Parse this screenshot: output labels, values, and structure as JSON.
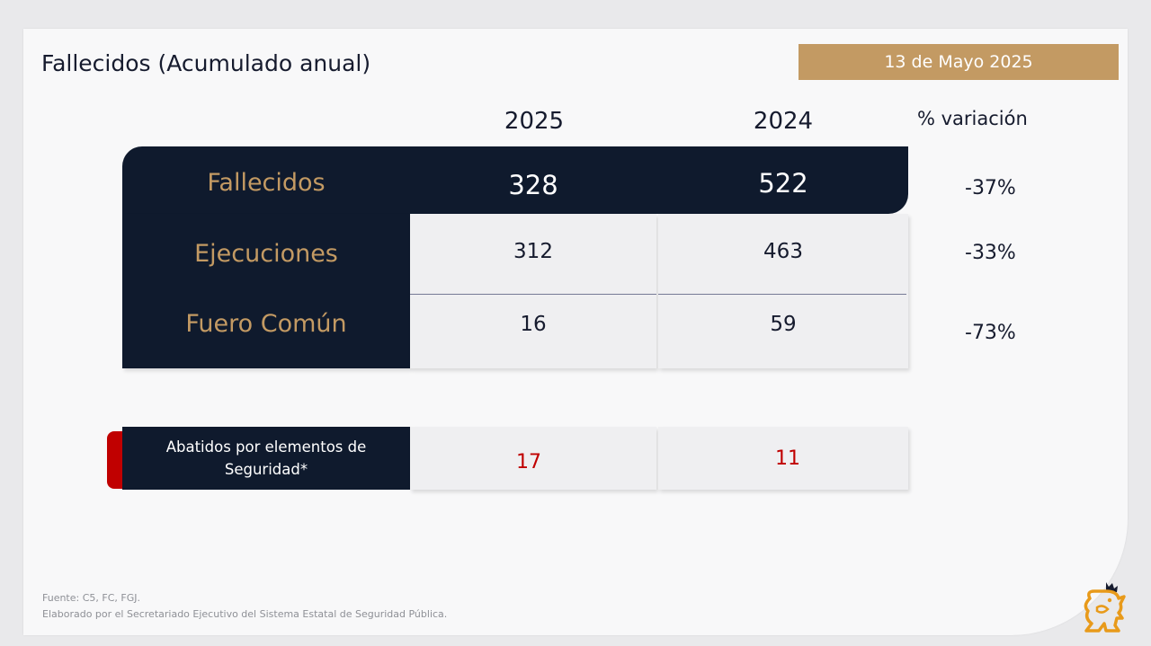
{
  "title": "Fallecidos (Acumulado anual)",
  "date": "13 de Mayo 2025",
  "columns": {
    "y2025": "2025",
    "y2024": "2024",
    "variation": "% variación"
  },
  "rows": [
    {
      "label": "Fallecidos",
      "v2025": "328",
      "v2024": "522",
      "variation": "-37%"
    },
    {
      "label": "Ejecuciones",
      "v2025": "312",
      "v2024": "463",
      "variation": "-33%"
    },
    {
      "label": "Fuero Común",
      "v2025": "16",
      "v2024": "59",
      "variation": "-73%"
    }
  ],
  "abatidos": {
    "label_line1": "Abatidos por elementos de",
    "label_line2": "Seguridad*",
    "v2025": "17",
    "v2024": "11"
  },
  "footer": {
    "source": "Fuente: C5, FC, FGJ.",
    "credit": "Elaborado por el Secretariado Ejecutivo del Sistema Estatal de Seguridad Pública."
  },
  "colors": {
    "navy": "#0f1a2d",
    "gold": "#c39a63",
    "red": "#c00000"
  },
  "logo_icon": "lion-crown-icon"
}
